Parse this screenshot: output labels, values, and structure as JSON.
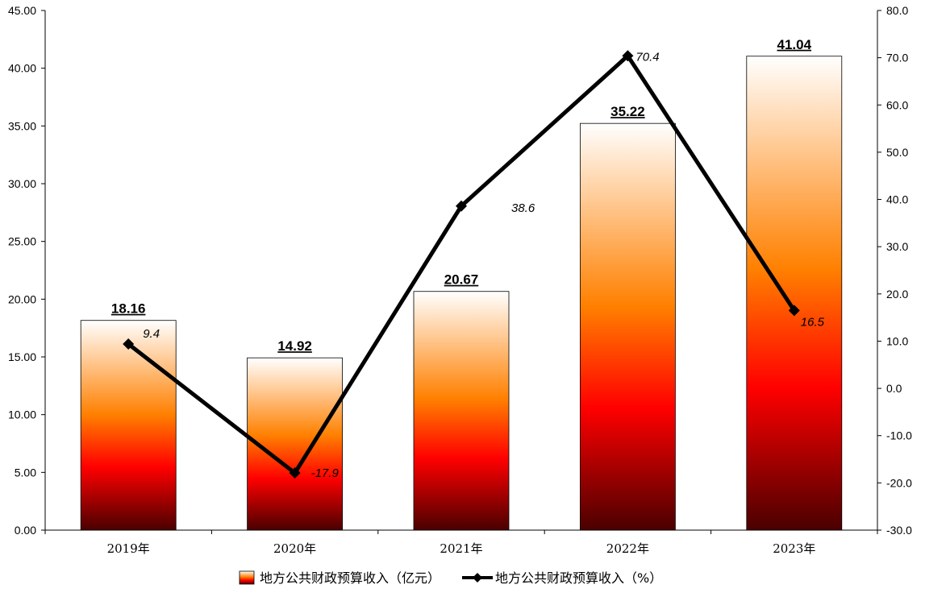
{
  "chart_data": {
    "type": "bar",
    "categories": [
      "2019年",
      "2020年",
      "2021年",
      "2022年",
      "2023年"
    ],
    "series": [
      {
        "name": "地方公共财政预算收入（亿元）",
        "type": "bar",
        "axis": "left",
        "values": [
          18.16,
          14.92,
          20.67,
          35.22,
          41.04
        ],
        "labels": [
          "18.16",
          "14.92",
          "20.67",
          "35.22",
          "41.04"
        ]
      },
      {
        "name": "地方公共财政预算收入（%）",
        "type": "line",
        "axis": "right",
        "values": [
          9.4,
          -17.9,
          38.6,
          70.4,
          16.5
        ],
        "labels": [
          "9.4",
          "-17.9",
          "38.6",
          "70.4",
          "16.5"
        ]
      }
    ],
    "left_axis": {
      "ylim": [
        0,
        45
      ],
      "ticks": [
        "0.00",
        "5.00",
        "10.00",
        "15.00",
        "20.00",
        "25.00",
        "30.00",
        "35.00",
        "40.00",
        "45.00"
      ]
    },
    "right_axis": {
      "ylim": [
        -30,
        80
      ],
      "ticks": [
        "-30.0",
        "-20.0",
        "-10.0",
        "0.0",
        "10.0",
        "20.0",
        "30.0",
        "40.0",
        "50.0",
        "60.0",
        "70.0",
        "80.0"
      ]
    },
    "grid": false,
    "legend": "bottom",
    "colors": {
      "bar_top": "#ffffff",
      "bar_mid": "#ff8000",
      "bar_low": "#ff0000",
      "bar_bottom": "#4a0000",
      "line": "#000000",
      "axis": "#000000"
    }
  }
}
